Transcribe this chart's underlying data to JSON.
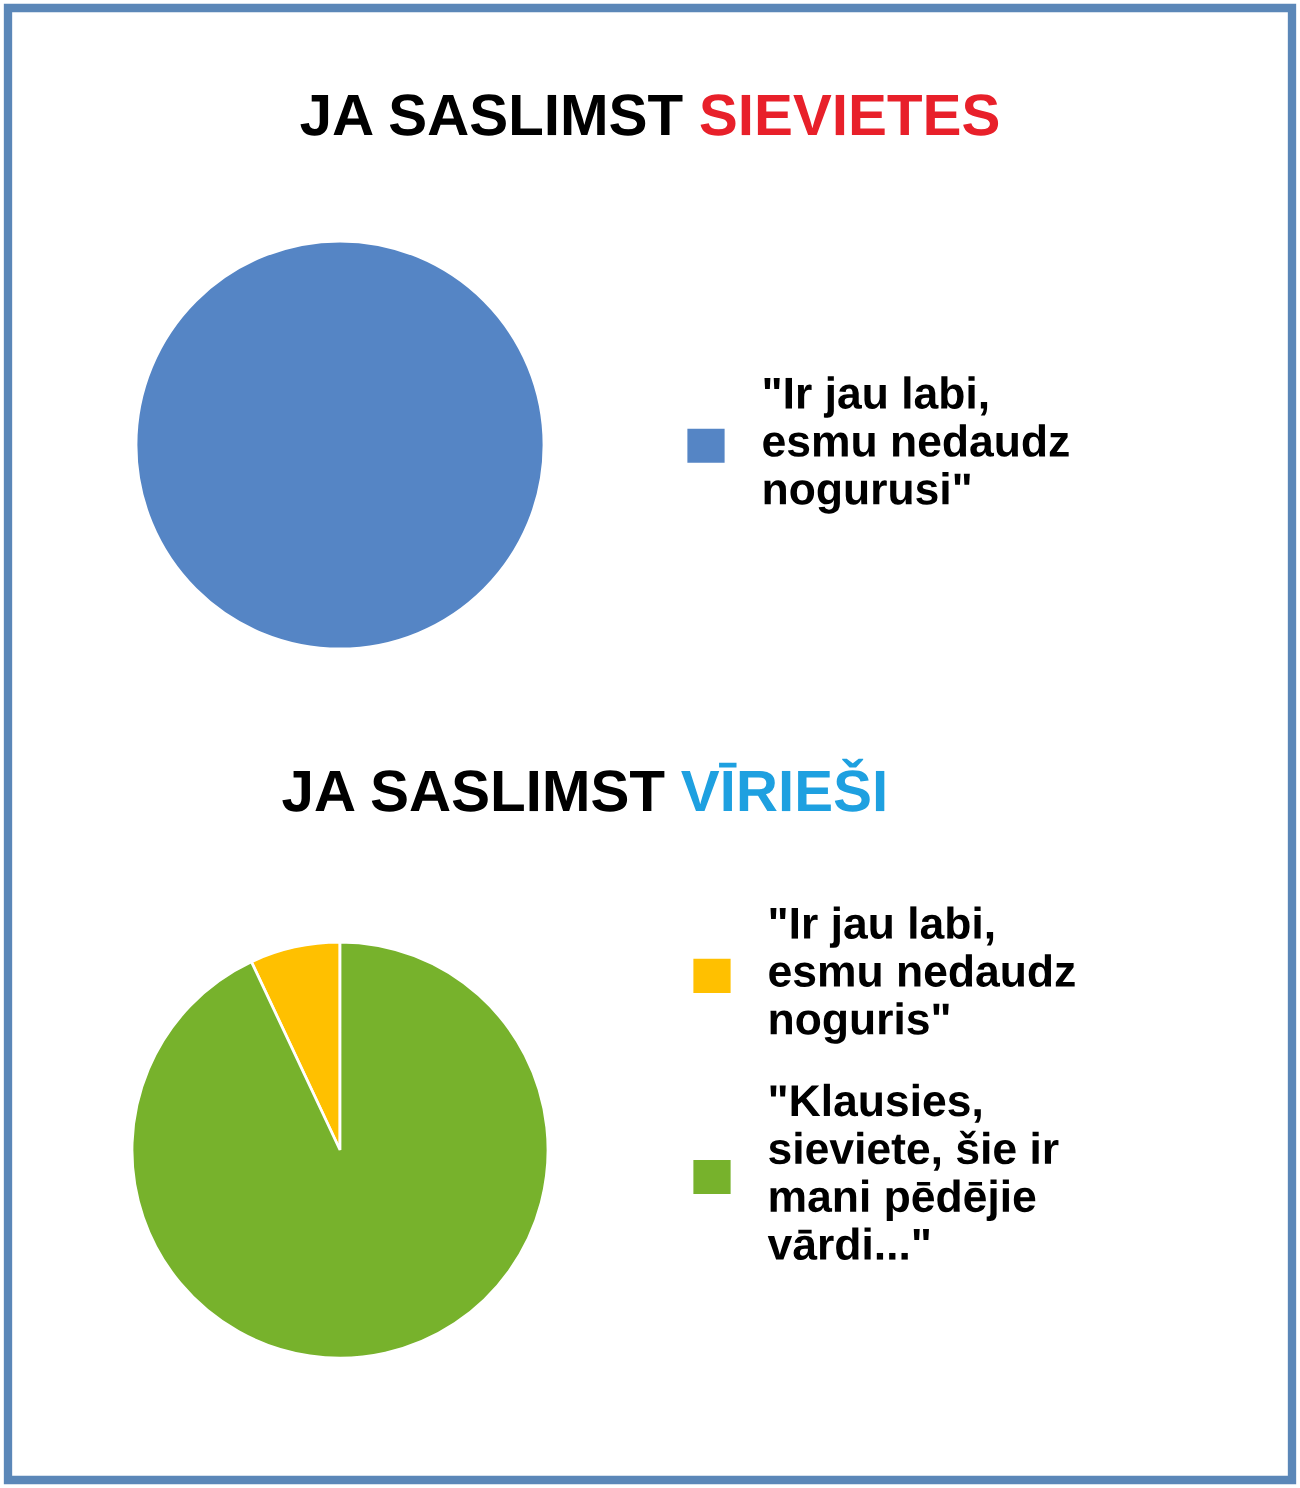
{
  "chart_data": [
    {
      "type": "pie",
      "title": "JA SASLIMST SIEVIETES",
      "categories": [
        "\"Ir jau labi,\nesmu nedaudz\nnogurusi\""
      ],
      "values": [
        100
      ],
      "colors": [
        "#5585c5"
      ],
      "legend": "right"
    },
    {
      "type": "pie",
      "title": "JA SASLIMST VĪRIEŠI",
      "categories": [
        "\"Ir jau labi,\nesmu nedaudz\nnoguris\"",
        "\"Klausies,\nsieviete, šie ir\nmani pēdējie\nvārdi...\""
      ],
      "values": [
        7,
        93
      ],
      "colors": [
        "#ffc000",
        "#77b22c"
      ],
      "legend": "right"
    }
  ]
}
